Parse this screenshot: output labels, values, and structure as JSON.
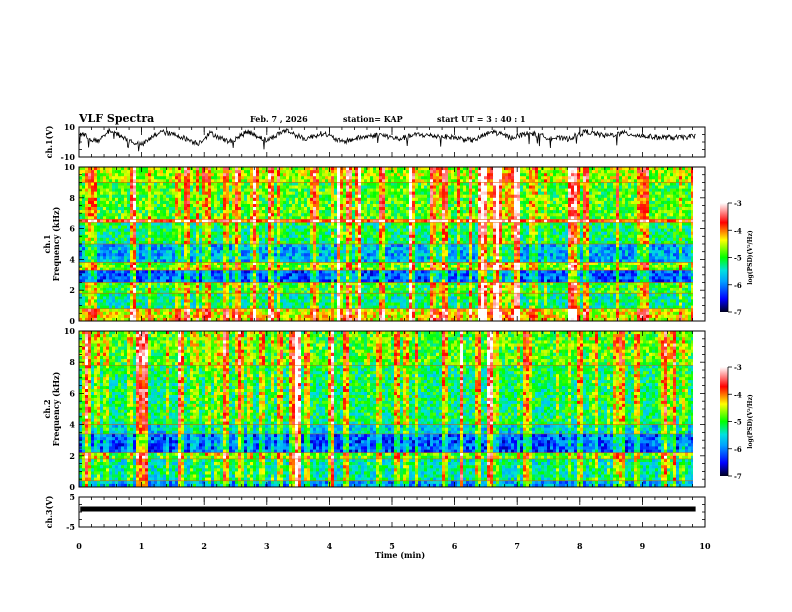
{
  "header": {
    "title": "VLF Spectra",
    "date": "Feb. 7  , 2026",
    "station": "station= KAP",
    "start_ut": "start  UT  =   3  : 40 : 1"
  },
  "chart_data": [
    {
      "type": "line",
      "name": "ch1-waveform",
      "ylabel": "ch.1(V)",
      "ylim": [
        -10,
        10
      ],
      "ytick_labels": [
        "10",
        "-10"
      ],
      "xlim": [
        0,
        10
      ],
      "data_end_min": 9.85,
      "description_values": {
        "baseline_V": 3,
        "envelope_min_V": -6,
        "envelope_max_V": 10
      },
      "x": [
        0,
        0.3,
        0.5,
        0.8,
        1.0,
        1.3,
        1.6,
        1.9,
        2.1,
        2.4,
        2.7,
        3.0,
        3.3,
        3.6,
        3.9,
        4.2,
        4.5,
        4.8,
        5.1,
        5.4,
        5.7,
        6.0,
        6.3,
        6.6,
        6.9,
        7.2,
        7.5,
        7.8,
        8.1,
        8.4,
        8.7,
        9.0,
        9.3,
        9.6,
        9.85
      ],
      "y": [
        6,
        0,
        8,
        1,
        -2,
        7,
        4,
        -1,
        6,
        0,
        7,
        1,
        8,
        2,
        6,
        0,
        3,
        5,
        2,
        5,
        4,
        3,
        1,
        7,
        3,
        6,
        3,
        2,
        7,
        4,
        6,
        4,
        3,
        3,
        4
      ]
    },
    {
      "type": "heatmap",
      "name": "ch1-spectrogram",
      "ylabel_line1": "ch.1",
      "ylabel_line2": "Frequency  (kHz)",
      "ylim": [
        0,
        10
      ],
      "ytick_labels": [
        "10",
        "8",
        "6",
        "4",
        "2",
        "0"
      ],
      "xlim": [
        0,
        10
      ],
      "colorbar": {
        "label": "log(PSD)(V²/Hz)",
        "range": [
          -7,
          -3
        ],
        "tick_labels": [
          "-3",
          "-4",
          "-5",
          "-6",
          "-7"
        ]
      },
      "bands_khz": [
        {
          "from": 9.0,
          "to": 10.0,
          "level": -4.6
        },
        {
          "from": 6.6,
          "to": 9.0,
          "level": -4.9
        },
        {
          "from": 6.4,
          "to": 6.6,
          "level": -3.8
        },
        {
          "from": 5.0,
          "to": 6.4,
          "level": -5.2
        },
        {
          "from": 3.8,
          "to": 5.0,
          "level": -5.8
        },
        {
          "from": 3.3,
          "to": 3.8,
          "level": -4.8
        },
        {
          "from": 2.5,
          "to": 3.3,
          "level": -6.2
        },
        {
          "from": 1.8,
          "to": 2.5,
          "level": -5.0
        },
        {
          "from": 0.8,
          "to": 1.8,
          "level": -5.3
        },
        {
          "from": 0.0,
          "to": 0.8,
          "level": -4.4
        }
      ]
    },
    {
      "type": "heatmap",
      "name": "ch2-spectrogram",
      "ylabel_line1": "ch.2",
      "ylabel_line2": "Frequency  (kHz)",
      "ylim": [
        0,
        10
      ],
      "ytick_labels": [
        "10",
        "8",
        "6",
        "4",
        "2",
        "0"
      ],
      "xlim": [
        0,
        10
      ],
      "colorbar": {
        "label": "log(PSD)(V²/Hz)",
        "range": [
          -7,
          -3
        ],
        "tick_labels": [
          "-3",
          "-4",
          "-5",
          "-6",
          "-7"
        ]
      },
      "bands_khz": [
        {
          "from": 7.8,
          "to": 10.0,
          "level": -4.9
        },
        {
          "from": 4.0,
          "to": 7.8,
          "level": -5.2
        },
        {
          "from": 3.4,
          "to": 4.0,
          "level": -5.6
        },
        {
          "from": 2.2,
          "to": 3.4,
          "level": -6.2
        },
        {
          "from": 1.8,
          "to": 2.2,
          "level": -4.9
        },
        {
          "from": 0.4,
          "to": 1.8,
          "level": -5.4
        },
        {
          "from": 0.0,
          "to": 0.4,
          "level": -5.9
        }
      ]
    },
    {
      "type": "line",
      "name": "ch3-waveform",
      "ylabel": "ch.3(V)",
      "ylim": [
        -5,
        5
      ],
      "ytick_labels": [
        "5",
        "-5"
      ],
      "xlim": [
        0,
        10
      ],
      "data_end_min": 9.85,
      "description_values": {
        "level_V": 1
      }
    }
  ],
  "xaxis": {
    "label": "Time  (min)",
    "tick_labels": [
      "0",
      "1",
      "2",
      "3",
      "4",
      "5",
      "6",
      "7",
      "8",
      "9",
      "10"
    ]
  }
}
